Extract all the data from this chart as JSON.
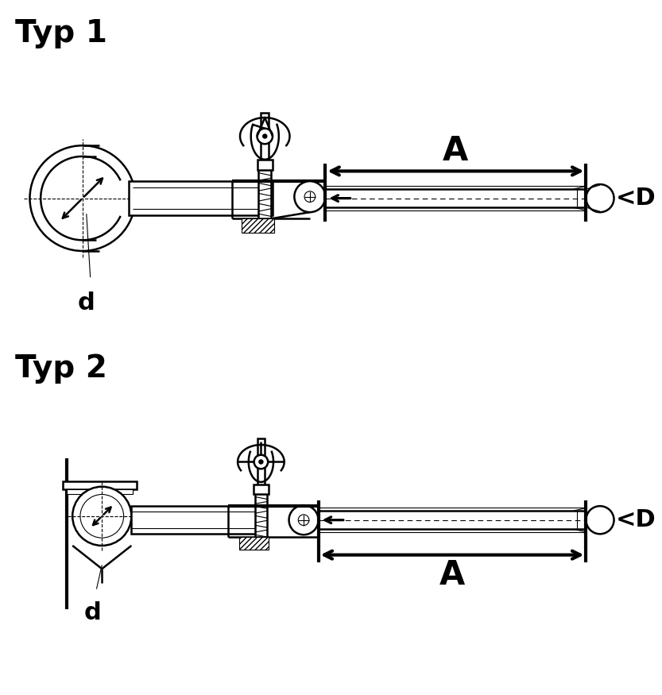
{
  "title1": "Typ 1",
  "title2": "Typ 2",
  "label_A": "A",
  "label_D": "<D",
  "label_d": "d",
  "bg_color": "#ffffff",
  "line_color": "#000000",
  "lw_main": 1.8,
  "lw_thin": 0.8,
  "lw_thick": 3.0,
  "title_fontsize": 28,
  "A_fontsize": 30,
  "D_fontsize": 22
}
